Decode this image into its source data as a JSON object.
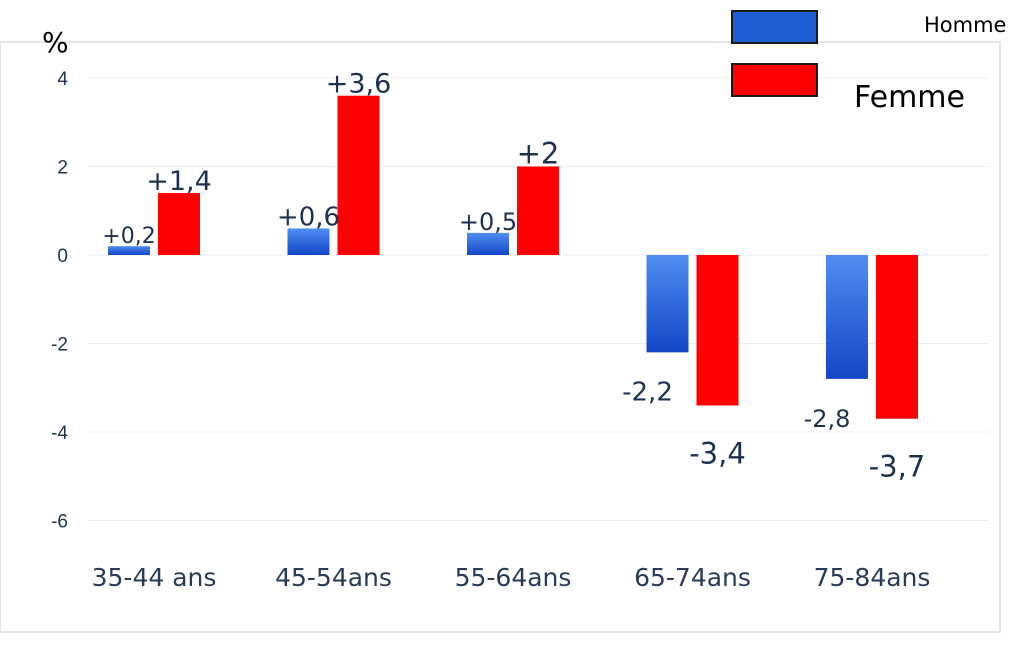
{
  "chart_data": {
    "type": "bar",
    "title": "",
    "ylabel": "%",
    "xlabel": "",
    "categories": [
      "35-44 ans",
      "45-54ans",
      "55-64ans",
      "65-74ans",
      "75-84ans"
    ],
    "ylim": [
      -6,
      4.5
    ],
    "yticks": [
      4,
      2,
      0,
      -2,
      -4,
      -6
    ],
    "ytick_labels": [
      "4",
      "2",
      "0",
      "-2",
      "-4",
      "-6"
    ],
    "grid": true,
    "legend_position": "top-right",
    "series": [
      {
        "name": "Homme",
        "color": "#1f5fd6",
        "values": [
          0.2,
          0.6,
          0.5,
          -2.2,
          -2.8
        ],
        "labels": [
          "+0,2",
          "+0,6",
          "+0,5",
          "-2,2",
          "-2,8"
        ]
      },
      {
        "name": "Femme",
        "color": "#ff0000",
        "values": [
          1.4,
          3.6,
          2.0,
          -3.4,
          -3.7
        ],
        "labels": [
          "+1,4",
          "+3,6",
          "+2",
          "-3,4",
          "-3,7"
        ]
      }
    ]
  }
}
